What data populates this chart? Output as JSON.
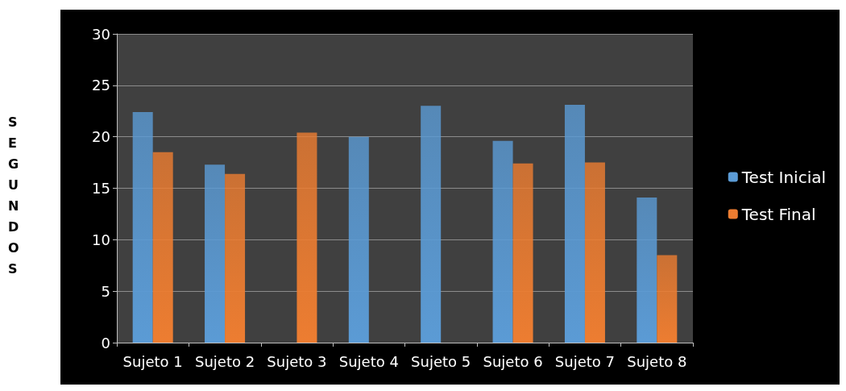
{
  "chart_data": {
    "type": "bar",
    "annotations": [
      "SEGUNDOS"
    ],
    "categories": [
      "Sujeto 1",
      "Sujeto 2",
      "Sujeto 3",
      "Sujeto 4",
      "Sujeto 5",
      "Sujeto 6",
      "Sujeto 7",
      "Sujeto 8"
    ],
    "series": [
      {
        "name": "Test Inicial",
        "color": "#5b9bd5",
        "values": [
          22.4,
          17.3,
          null,
          20.0,
          23.0,
          19.6,
          23.1,
          14.1
        ]
      },
      {
        "name": "Test Final",
        "color": "#ed7d31",
        "values": [
          18.5,
          16.4,
          20.4,
          null,
          null,
          17.4,
          17.5,
          8.5
        ]
      }
    ],
    "ylim": [
      0,
      30
    ],
    "yticks": [
      0,
      5,
      10,
      15,
      20,
      25,
      30
    ],
    "grid": "y",
    "legend": "right"
  }
}
